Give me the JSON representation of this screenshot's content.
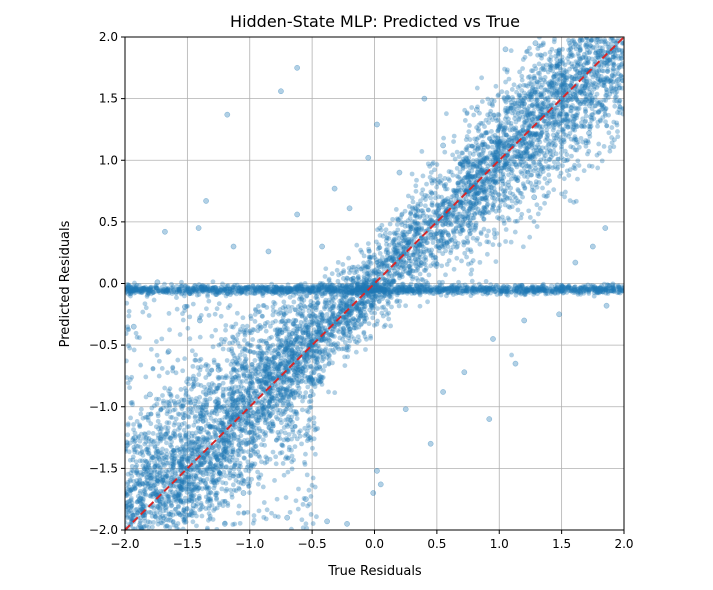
{
  "chart_data": {
    "type": "scatter",
    "title": "Hidden-State MLP: Predicted vs True",
    "xlabel": "True Residuals",
    "ylabel": "Predicted Residuals",
    "xlim": [
      -2.0,
      2.0
    ],
    "ylim": [
      -2.0,
      2.0
    ],
    "xticks": [
      "−2.0",
      "−1.5",
      "−1.0",
      "−0.5",
      "0.0",
      "0.5",
      "1.0",
      "1.5",
      "2.0"
    ],
    "yticks": [
      "−2.0",
      "−1.5",
      "−1.0",
      "−0.5",
      "0.0",
      "0.5",
      "1.0",
      "1.5",
      "2.0"
    ],
    "grid": true,
    "point_color": "#1f77b4",
    "point_alpha": 0.35,
    "reference_line": {
      "x": [
        -2.0,
        2.0
      ],
      "y": [
        -2.0,
        2.0
      ],
      "color": "#d62728",
      "style": "dashed"
    },
    "points": [
      [
        -1.18,
        1.37
      ],
      [
        -0.62,
        1.75
      ],
      [
        -0.75,
        1.56
      ],
      [
        -1.35,
        0.67
      ],
      [
        -1.41,
        0.45
      ],
      [
        -1.68,
        0.42
      ],
      [
        -1.74,
        0.01
      ],
      [
        -1.52,
        -0.19
      ],
      [
        -1.13,
        0.3
      ],
      [
        -0.85,
        0.26
      ],
      [
        -0.62,
        0.56
      ],
      [
        -0.42,
        0.3
      ],
      [
        -0.32,
        0.77
      ],
      [
        -0.2,
        0.61
      ],
      [
        -0.05,
        1.02
      ],
      [
        0.02,
        1.29
      ],
      [
        0.4,
        1.5
      ],
      [
        0.2,
        0.9
      ],
      [
        0.55,
        1.12
      ],
      [
        0.82,
        1.41
      ],
      [
        1.05,
        1.9
      ],
      [
        1.29,
        1.95
      ],
      [
        1.45,
        1.76
      ],
      [
        1.8,
        1.88
      ],
      [
        1.95,
        1.65
      ],
      [
        1.6,
        1.53
      ],
      [
        1.72,
        1.22
      ],
      [
        1.52,
        1.0
      ],
      [
        1.28,
        0.7
      ],
      [
        1.85,
        0.45
      ],
      [
        1.61,
        0.17
      ],
      [
        1.75,
        0.3
      ],
      [
        1.48,
        -0.25
      ],
      [
        1.86,
        -0.18
      ],
      [
        1.2,
        -0.3
      ],
      [
        1.13,
        -0.65
      ],
      [
        0.95,
        -0.45
      ],
      [
        0.72,
        -0.72
      ],
      [
        0.55,
        -0.88
      ],
      [
        0.92,
        -1.1
      ],
      [
        0.25,
        -1.02
      ],
      [
        0.45,
        -1.3
      ],
      [
        0.02,
        -1.52
      ],
      [
        -0.01,
        -1.7
      ],
      [
        0.05,
        -1.63
      ],
      [
        -0.22,
        -1.95
      ],
      [
        -0.38,
        -1.93
      ],
      [
        -0.55,
        -1.75
      ],
      [
        -0.7,
        -1.9
      ],
      [
        -1.05,
        -1.7
      ],
      [
        -1.2,
        -1.95
      ],
      [
        -1.45,
        -1.8
      ],
      [
        -1.7,
        -1.6
      ],
      [
        -1.88,
        -1.75
      ],
      [
        -1.92,
        -1.25
      ],
      [
        -1.8,
        -0.9
      ],
      [
        -1.65,
        -0.55
      ],
      [
        -1.93,
        -0.35
      ],
      [
        -1.4,
        -0.3
      ],
      [
        -1.25,
        -0.7
      ],
      [
        -1.0,
        -1.0
      ],
      [
        -0.5,
        -0.5
      ],
      [
        0.0,
        0.0
      ],
      [
        0.5,
        0.5
      ],
      [
        1.0,
        1.0
      ],
      [
        1.5,
        1.5
      ],
      [
        -1.5,
        -1.5
      ],
      [
        -0.8,
        -0.6
      ],
      [
        0.3,
        0.45
      ],
      [
        0.8,
        0.7
      ]
    ]
  }
}
